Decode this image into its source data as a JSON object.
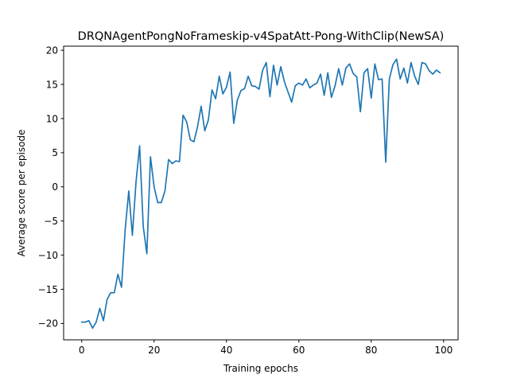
{
  "chart_data": {
    "type": "line",
    "title": "DRQNAgentPongNoFrameskip-v4SpatAtt-Pong-WithClip(NewSA)",
    "xlabel": "Training epochs",
    "ylabel": "Average score per episode",
    "xlim": [
      -5,
      104
    ],
    "ylim": [
      -22.4,
      20.6
    ],
    "xticks": [
      0,
      20,
      40,
      60,
      80,
      100
    ],
    "yticks": [
      -20,
      -15,
      -10,
      -5,
      0,
      5,
      10,
      15,
      20
    ],
    "grid": false,
    "line_color": "#1f77b4",
    "series": [
      {
        "x": [
          0,
          1,
          2,
          3,
          4,
          5,
          6,
          7,
          8,
          9,
          10,
          11,
          12,
          13,
          14,
          15,
          16,
          17,
          18,
          19,
          20,
          21,
          22,
          23,
          24,
          25,
          26,
          27,
          28,
          29,
          30,
          31,
          32,
          33,
          34,
          35,
          36,
          37,
          38,
          39,
          40,
          41,
          42,
          43,
          44,
          45,
          46,
          47,
          48,
          49,
          50,
          51,
          52,
          53,
          54,
          55,
          56,
          57,
          58,
          59,
          60,
          61,
          62,
          63,
          64,
          65,
          66,
          67,
          68,
          69,
          70,
          71,
          72,
          73,
          74,
          75,
          76,
          77,
          78,
          79,
          80,
          81,
          82,
          83,
          84,
          85,
          86,
          87,
          88,
          89,
          90,
          91,
          92,
          93,
          94,
          95,
          96,
          97,
          98,
          99
        ],
        "values": [
          -19.8,
          -19.8,
          -19.6,
          -20.7,
          -19.8,
          -17.8,
          -19.6,
          -16.5,
          -15.5,
          -15.5,
          -12.8,
          -14.7,
          -6.3,
          -0.6,
          -7.1,
          0.7,
          6.0,
          -5.8,
          -9.8,
          4.4,
          0.0,
          -2.3,
          -2.3,
          -0.6,
          4.0,
          3.4,
          3.8,
          3.7,
          10.5,
          9.5,
          6.9,
          6.6,
          8.8,
          11.8,
          8.2,
          9.8,
          14.2,
          12.9,
          16.2,
          13.6,
          14.6,
          16.8,
          9.3,
          12.7,
          14.1,
          14.4,
          16.2,
          14.8,
          14.7,
          14.3,
          17.1,
          18.2,
          13.2,
          17.8,
          14.9,
          17.6,
          15.4,
          13.9,
          12.4,
          14.8,
          15.2,
          14.9,
          15.8,
          14.5,
          14.9,
          15.2,
          16.5,
          13.4,
          16.7,
          13.1,
          14.8,
          17.3,
          14.9,
          17.4,
          18.0,
          16.6,
          16.1,
          11.0,
          16.7,
          17.3,
          13.0,
          18.0,
          15.7,
          15.8,
          3.6,
          15.8,
          17.9,
          18.7,
          15.8,
          17.4,
          15.2,
          18.2,
          16.2,
          15.0,
          18.2,
          18.0,
          17.0,
          16.5,
          17.1,
          16.7
        ]
      }
    ]
  }
}
